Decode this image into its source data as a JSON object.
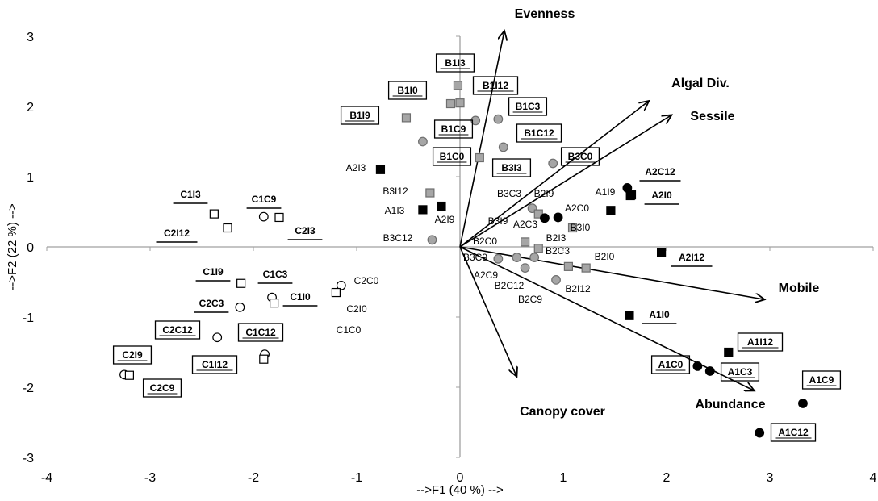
{
  "chart_data": {
    "type": "scatter",
    "title": "",
    "xlabel": "-->F1 (40 %) -->",
    "ylabel": "-->F2 (22 %) -->",
    "xlim": [
      -4,
      4
    ],
    "ylim": [
      -3,
      3
    ],
    "xticks": [
      "-4",
      "-3",
      "-2",
      "-1",
      "0",
      "1",
      "2",
      "3",
      "4"
    ],
    "yticks": [
      "-3",
      "-2",
      "-1",
      "0",
      "1",
      "2",
      "3"
    ],
    "colors": {
      "black": "#000000",
      "gray": "#a6a6a6",
      "white": "#ffffff"
    },
    "vectors": [
      {
        "name": "Evenness",
        "x": 0.43,
        "y": 3.08
      },
      {
        "name": "Algal Div.",
        "x": 1.83,
        "y": 2.08
      },
      {
        "name": "Sessile",
        "x": 2.05,
        "y": 1.88
      },
      {
        "name": "Mobile",
        "x": 2.95,
        "y": -0.75
      },
      {
        "name": "Abundance",
        "x": 2.85,
        "y": -2.05
      },
      {
        "name": "Canopy cover",
        "x": 0.55,
        "y": -1.85
      }
    ],
    "points": [
      {
        "label": "B1I3",
        "x": -0.02,
        "y": 2.3,
        "shape": "square",
        "fill": "gray",
        "style": "boxed"
      },
      {
        "label": "B1I0",
        "x": -0.52,
        "y": 1.84,
        "shape": "square",
        "fill": "gray",
        "style": "boxed"
      },
      {
        "label": "B1I9",
        "x": -0.09,
        "y": 2.04,
        "shape": "square",
        "fill": "gray",
        "style": "boxed"
      },
      {
        "label": "B1I12",
        "x": 0.0,
        "y": 2.05,
        "shape": "square",
        "fill": "gray",
        "style": "boxed"
      },
      {
        "label": "B1C3",
        "x": 0.37,
        "y": 1.82,
        "shape": "circle",
        "fill": "gray",
        "style": "boxed"
      },
      {
        "label": "B1C9",
        "x": -0.36,
        "y": 1.5,
        "shape": "circle",
        "fill": "gray",
        "style": "boxed"
      },
      {
        "label": "B1C12",
        "x": 0.42,
        "y": 1.42,
        "shape": "circle",
        "fill": "gray",
        "style": "boxed"
      },
      {
        "label": "B1C0",
        "x": 0.15,
        "y": 1.8,
        "shape": "circle",
        "fill": "gray",
        "style": "boxed"
      },
      {
        "label": "B3I3",
        "x": 0.19,
        "y": 1.27,
        "shape": "square",
        "fill": "gray",
        "style": "boxed"
      },
      {
        "label": "B3C0",
        "x": 0.9,
        "y": 1.19,
        "shape": "circle",
        "fill": "gray",
        "style": "boxed"
      },
      {
        "label": "A2I3",
        "x": -0.77,
        "y": 1.1,
        "shape": "square",
        "fill": "black",
        "style": "plain"
      },
      {
        "label": "B3I12",
        "x": -0.29,
        "y": 0.77,
        "shape": "square",
        "fill": "gray",
        "style": "plain"
      },
      {
        "label": "A1I3",
        "x": -0.36,
        "y": 0.53,
        "shape": "square",
        "fill": "black",
        "style": "plain"
      },
      {
        "label": "A2I9",
        "x": -0.18,
        "y": 0.58,
        "shape": "square",
        "fill": "black",
        "style": "plain"
      },
      {
        "label": "B3C12",
        "x": -0.27,
        "y": 0.1,
        "shape": "circle",
        "fill": "gray",
        "style": "plain"
      },
      {
        "label": "B3C3",
        "x": 0.7,
        "y": 0.55,
        "shape": "circle",
        "fill": "gray",
        "style": "plain"
      },
      {
        "label": "B2I9",
        "x": 0.76,
        "y": 0.47,
        "shape": "square",
        "fill": "gray",
        "style": "plain"
      },
      {
        "label": "B3I9",
        "x": 0.82,
        "y": 0.41,
        "shape": "circle",
        "fill": "black",
        "style": "plain"
      },
      {
        "label": "A2C3",
        "x": 0.95,
        "y": 0.42,
        "shape": "circle",
        "fill": "black",
        "style": "plain"
      },
      {
        "label": "A2C0",
        "x": 1.09,
        "y": 0.27,
        "shape": "square",
        "fill": "gray",
        "style": "plain"
      },
      {
        "label": "B3I0",
        "x": 1.46,
        "y": 0.52,
        "shape": "square",
        "fill": "black",
        "style": "plain"
      },
      {
        "label": "A1I9",
        "x": 1.62,
        "y": 0.84,
        "shape": "circle",
        "fill": "black",
        "style": "plain"
      },
      {
        "label": "A2C12",
        "x": 1.66,
        "y": 0.74,
        "shape": "square",
        "fill": "black",
        "style": "underlined"
      },
      {
        "label": "A2I0",
        "x": 1.65,
        "y": 0.73,
        "shape": "square",
        "fill": "black",
        "style": "underlined"
      },
      {
        "label": "A2I12",
        "x": 1.95,
        "y": -0.08,
        "shape": "square",
        "fill": "black",
        "style": "underlined"
      },
      {
        "label": "B2C0",
        "x": 0.63,
        "y": 0.07,
        "shape": "square",
        "fill": "gray",
        "style": "plain"
      },
      {
        "label": "B2I3",
        "x": 0.76,
        "y": -0.02,
        "shape": "square",
        "fill": "gray",
        "style": "plain"
      },
      {
        "label": "B3C9",
        "x": 0.37,
        "y": -0.17,
        "shape": "circle",
        "fill": "gray",
        "style": "plain"
      },
      {
        "label": "B2C3",
        "x": 0.72,
        "y": -0.15,
        "shape": "circle",
        "fill": "gray",
        "style": "plain"
      },
      {
        "label": "B2I0",
        "x": 1.05,
        "y": -0.28,
        "shape": "square",
        "fill": "gray",
        "style": "plain"
      },
      {
        "label": "A2C9",
        "x": 0.55,
        "y": -0.15,
        "shape": "circle",
        "fill": "gray",
        "style": "plain"
      },
      {
        "label": "B2C12",
        "x": 0.63,
        "y": -0.3,
        "shape": "circle",
        "fill": "gray",
        "style": "plain"
      },
      {
        "label": "B2I12",
        "x": 1.22,
        "y": -0.3,
        "shape": "square",
        "fill": "gray",
        "style": "plain"
      },
      {
        "label": "B2C9",
        "x": 0.93,
        "y": -0.47,
        "shape": "circle",
        "fill": "gray",
        "style": "plain"
      },
      {
        "label": "A1I0",
        "x": 1.64,
        "y": -0.98,
        "shape": "square",
        "fill": "black",
        "style": "underlined"
      },
      {
        "label": "A1I12",
        "x": 2.6,
        "y": -1.5,
        "shape": "square",
        "fill": "black",
        "style": "boxed"
      },
      {
        "label": "A1C0",
        "x": 2.3,
        "y": -1.7,
        "shape": "circle",
        "fill": "black",
        "style": "boxed"
      },
      {
        "label": "A1C3",
        "x": 2.42,
        "y": -1.77,
        "shape": "circle",
        "fill": "black",
        "style": "boxed"
      },
      {
        "label": "A1C9",
        "x": 3.32,
        "y": -2.23,
        "shape": "circle",
        "fill": "black",
        "style": "boxed"
      },
      {
        "label": "A1C12",
        "x": 2.9,
        "y": -2.65,
        "shape": "circle",
        "fill": "black",
        "style": "boxed"
      },
      {
        "label": "C1I3",
        "x": -2.38,
        "y": 0.47,
        "shape": "square",
        "fill": "white",
        "style": "underlined"
      },
      {
        "label": "C1C9",
        "x": -1.9,
        "y": 0.43,
        "shape": "circle",
        "fill": "white",
        "style": "underlined"
      },
      {
        "label": "C2I12",
        "x": -2.25,
        "y": 0.27,
        "shape": "square",
        "fill": "white",
        "style": "underlined"
      },
      {
        "label": "C2I3",
        "x": -1.75,
        "y": 0.42,
        "shape": "square",
        "fill": "white",
        "style": "underlined"
      },
      {
        "label": "C1I9",
        "x": -2.12,
        "y": -0.52,
        "shape": "square",
        "fill": "white",
        "style": "underlined"
      },
      {
        "label": "C1C3",
        "x": -1.82,
        "y": -0.72,
        "shape": "circle",
        "fill": "white",
        "style": "underlined"
      },
      {
        "label": "C1I0",
        "x": -1.8,
        "y": -0.8,
        "shape": "square",
        "fill": "white",
        "style": "underlined"
      },
      {
        "label": "C2C3",
        "x": -2.13,
        "y": -0.86,
        "shape": "circle",
        "fill": "white",
        "style": "underlined"
      },
      {
        "label": "C2C0",
        "x": -1.15,
        "y": -0.55,
        "shape": "circle",
        "fill": "white",
        "style": "plain"
      },
      {
        "label": "C2I0",
        "x": -1.2,
        "y": -0.65,
        "shape": "square",
        "fill": "white",
        "style": "plain"
      },
      {
        "label": "C1C0",
        "x": -1.2,
        "y": -0.65,
        "shape": "none",
        "fill": "white",
        "style": "plain"
      },
      {
        "label": "C2C12",
        "x": -2.35,
        "y": -1.29,
        "shape": "circle",
        "fill": "white",
        "style": "boxed"
      },
      {
        "label": "C1C12",
        "x": -1.89,
        "y": -1.53,
        "shape": "circle",
        "fill": "white",
        "style": "boxed"
      },
      {
        "label": "C1I12",
        "x": -1.9,
        "y": -1.6,
        "shape": "square",
        "fill": "white",
        "style": "boxed"
      },
      {
        "label": "C2I9",
        "x": -3.25,
        "y": -1.82,
        "shape": "circle",
        "fill": "white",
        "style": "boxed"
      },
      {
        "label": "C2C9",
        "x": -3.2,
        "y": -1.83,
        "shape": "square",
        "fill": "white",
        "style": "boxed"
      }
    ]
  }
}
